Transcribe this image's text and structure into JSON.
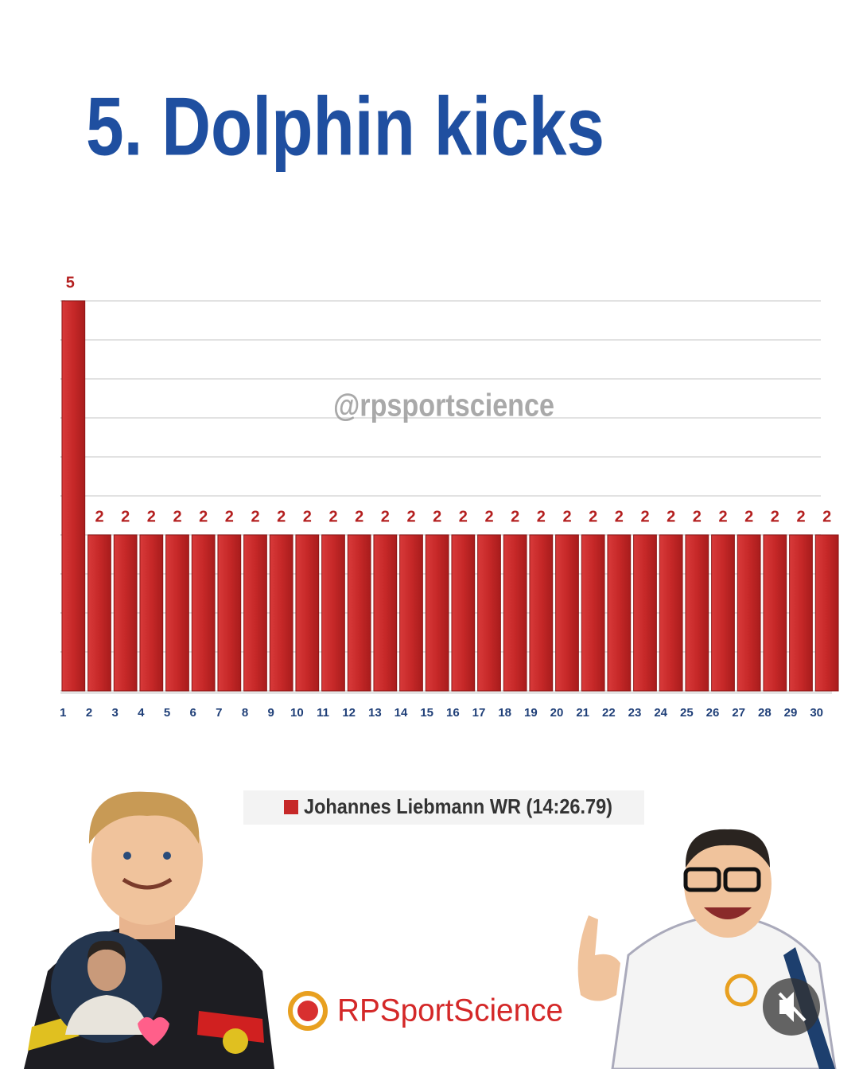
{
  "chart_data": {
    "type": "bar",
    "title": "5. Dolphin kicks",
    "watermark": "@rpsportscience",
    "brand": "RPSportScience",
    "categories": [
      "1",
      "2",
      "3",
      "4",
      "5",
      "6",
      "7",
      "8",
      "9",
      "10",
      "11",
      "12",
      "13",
      "14",
      "15",
      "16",
      "17",
      "18",
      "19",
      "20",
      "21",
      "22",
      "23",
      "24",
      "25",
      "26",
      "27",
      "28",
      "29",
      "30"
    ],
    "series": [
      {
        "name": "Johannes Liebmann WR (14:26.79)",
        "color": "#c62828",
        "values": [
          5,
          2,
          2,
          2,
          2,
          2,
          2,
          2,
          2,
          2,
          2,
          2,
          2,
          2,
          2,
          2,
          2,
          2,
          2,
          2,
          2,
          2,
          2,
          2,
          2,
          2,
          2,
          2,
          2,
          2
        ]
      }
    ],
    "ylim": [
      0,
      5
    ],
    "yticks": [
      0,
      0.5,
      1,
      1.5,
      2,
      2.5,
      3,
      3.5,
      4,
      4.5,
      5
    ],
    "grid": true
  }
}
